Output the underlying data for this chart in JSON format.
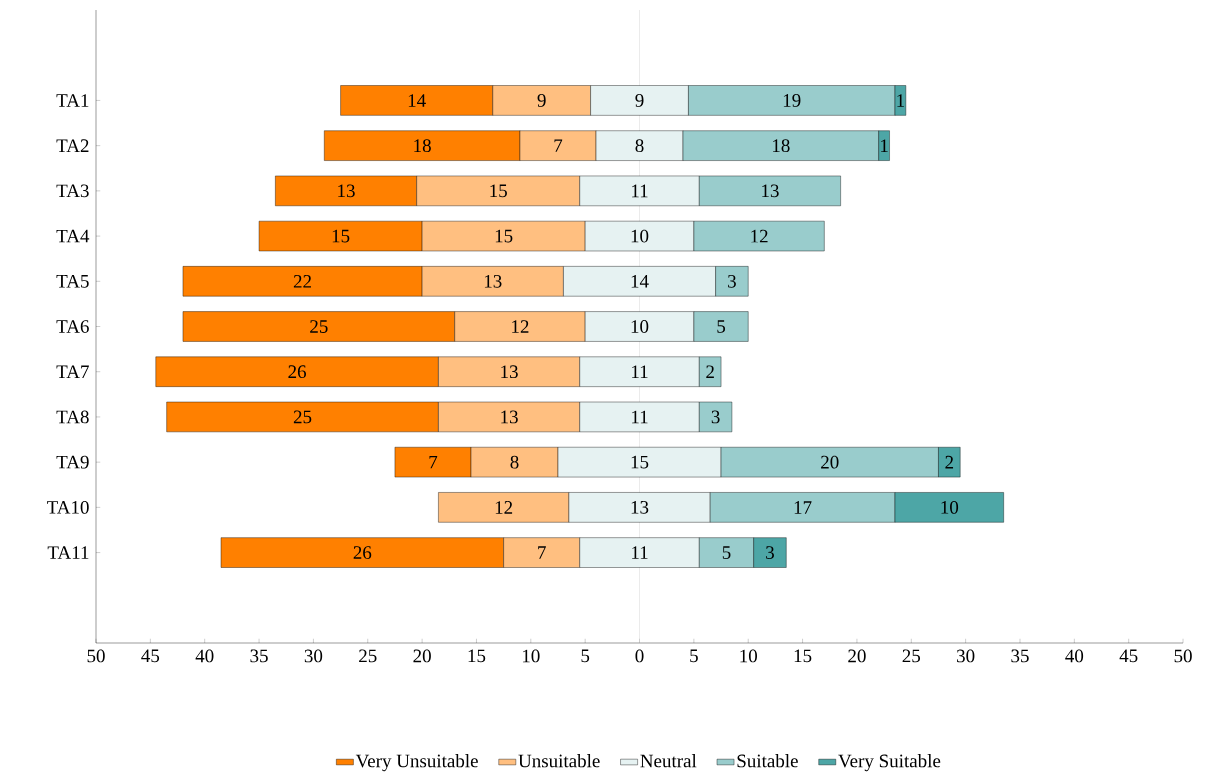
{
  "chart_data": {
    "type": "bar",
    "orientation": "horizontal",
    "categories": [
      "TA1",
      "TA2",
      "TA3",
      "TA4",
      "TA5",
      "TA6",
      "TA7",
      "TA8",
      "TA9",
      "TA10",
      "TA11"
    ],
    "series": [
      {
        "name": "Very Unsuitable",
        "color": "#ff8000",
        "values": [
          14,
          18,
          13,
          15,
          22,
          25,
          26,
          25,
          7,
          null,
          26
        ],
        "base": [
          -27.5,
          -29,
          -33.5,
          -35,
          -42,
          -42,
          -44.5,
          -43.5,
          -22.5,
          null,
          -38.5
        ]
      },
      {
        "name": "Unsuitable",
        "color": "#ffbf80",
        "values": [
          9,
          7,
          15,
          15,
          13,
          12,
          13,
          13,
          8,
          12,
          7
        ],
        "base": [
          -13.5,
          -11,
          -20.5,
          -20,
          -20,
          -17,
          -18.5,
          -18.5,
          -15.5,
          -18.5,
          -12.5
        ]
      },
      {
        "name": "Neutral",
        "color": "#e6f2f2",
        "values": [
          9,
          8,
          11,
          10,
          14,
          10,
          11,
          11,
          15,
          13,
          11
        ],
        "base": [
          -4.5,
          -4,
          -5.5,
          -5,
          -7,
          -5,
          -5.5,
          -5.5,
          -7.5,
          -6.5,
          -5.5
        ]
      },
      {
        "name": "Suitable",
        "color": "#99cccc",
        "values": [
          19,
          18,
          13,
          12,
          3,
          5,
          2,
          3,
          20,
          17,
          5
        ],
        "base": [
          4.5,
          4,
          5.5,
          5,
          7,
          5,
          5.5,
          5.5,
          7.5,
          6.5,
          5.5
        ]
      },
      {
        "name": "Very Suitable",
        "color": "#4da6a6",
        "values": [
          1,
          1,
          null,
          null,
          null,
          null,
          null,
          null,
          2,
          10,
          3
        ],
        "base": [
          23.5,
          22,
          null,
          null,
          null,
          null,
          null,
          null,
          27.5,
          23.5,
          10.5
        ]
      }
    ],
    "xlim": [
      -50,
      50
    ],
    "xticks": [
      {
        "value": -50,
        "label": "50"
      },
      {
        "value": -45,
        "label": "45"
      },
      {
        "value": -40,
        "label": "40"
      },
      {
        "value": -35,
        "label": "35"
      },
      {
        "value": -30,
        "label": "30"
      },
      {
        "value": -25,
        "label": "25"
      },
      {
        "value": -20,
        "label": "20"
      },
      {
        "value": -15,
        "label": "15"
      },
      {
        "value": -10,
        "label": "10"
      },
      {
        "value": -5,
        "label": "5"
      },
      0,
      5,
      10,
      15,
      20,
      25,
      30,
      35,
      40,
      45,
      50
    ],
    "ref_lines": [
      {
        "axis": "x",
        "value": 0,
        "color": "#cccccc"
      }
    ],
    "data_labels": true,
    "legend": "bottom",
    "grid": false
  }
}
